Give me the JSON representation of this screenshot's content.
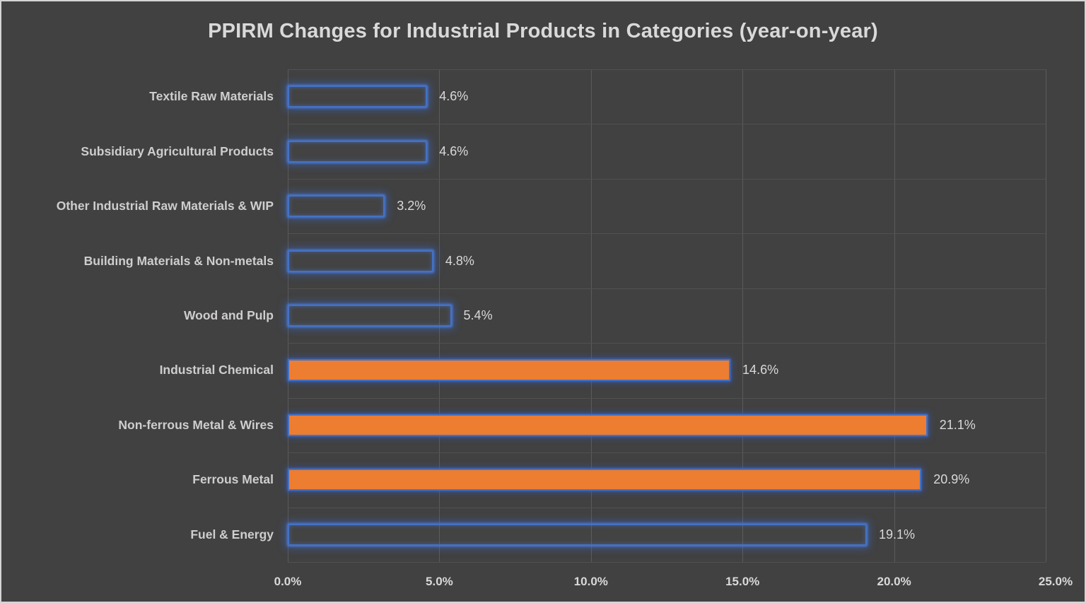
{
  "chart_data": {
    "type": "bar",
    "orientation": "horizontal",
    "title": "PPIRM Changes for Industrial Products in Categories (year-on-year)",
    "categories": [
      "Textile Raw Materials",
      "Subsidiary Agricultural Products",
      "Other Industrial Raw Materials & WIP",
      "Building Materials & Non-metals",
      "Wood and Pulp",
      "Industrial Chemical",
      "Non-ferrous Metal & Wires",
      "Ferrous Metal",
      "Fuel & Energy"
    ],
    "values": [
      4.6,
      4.6,
      3.2,
      4.8,
      5.4,
      14.6,
      21.1,
      20.9,
      19.1
    ],
    "data_labels": [
      "4.6%",
      "4.6%",
      "3.2%",
      "4.8%",
      "5.4%",
      "14.6%",
      "21.1%",
      "20.9%",
      "19.1%"
    ],
    "filled": [
      false,
      false,
      false,
      false,
      false,
      true,
      true,
      true,
      false
    ],
    "x_tick_labels": [
      "0.0%",
      "5.0%",
      "10.0%",
      "15.0%",
      "20.0%",
      "25.0%"
    ],
    "x_tick_values": [
      0,
      5,
      10,
      15,
      20,
      25
    ],
    "xlim": [
      0,
      25
    ],
    "grid": true,
    "legend": "none",
    "colors": {
      "bar_fill": "#ed7d31",
      "bar_border": "#4472c4",
      "background": "#414141",
      "gridline": "#5b5b5b",
      "text": "#d9d9d9",
      "category_text": "#cfcdcd",
      "frame_border": "#d4d4d4"
    }
  }
}
